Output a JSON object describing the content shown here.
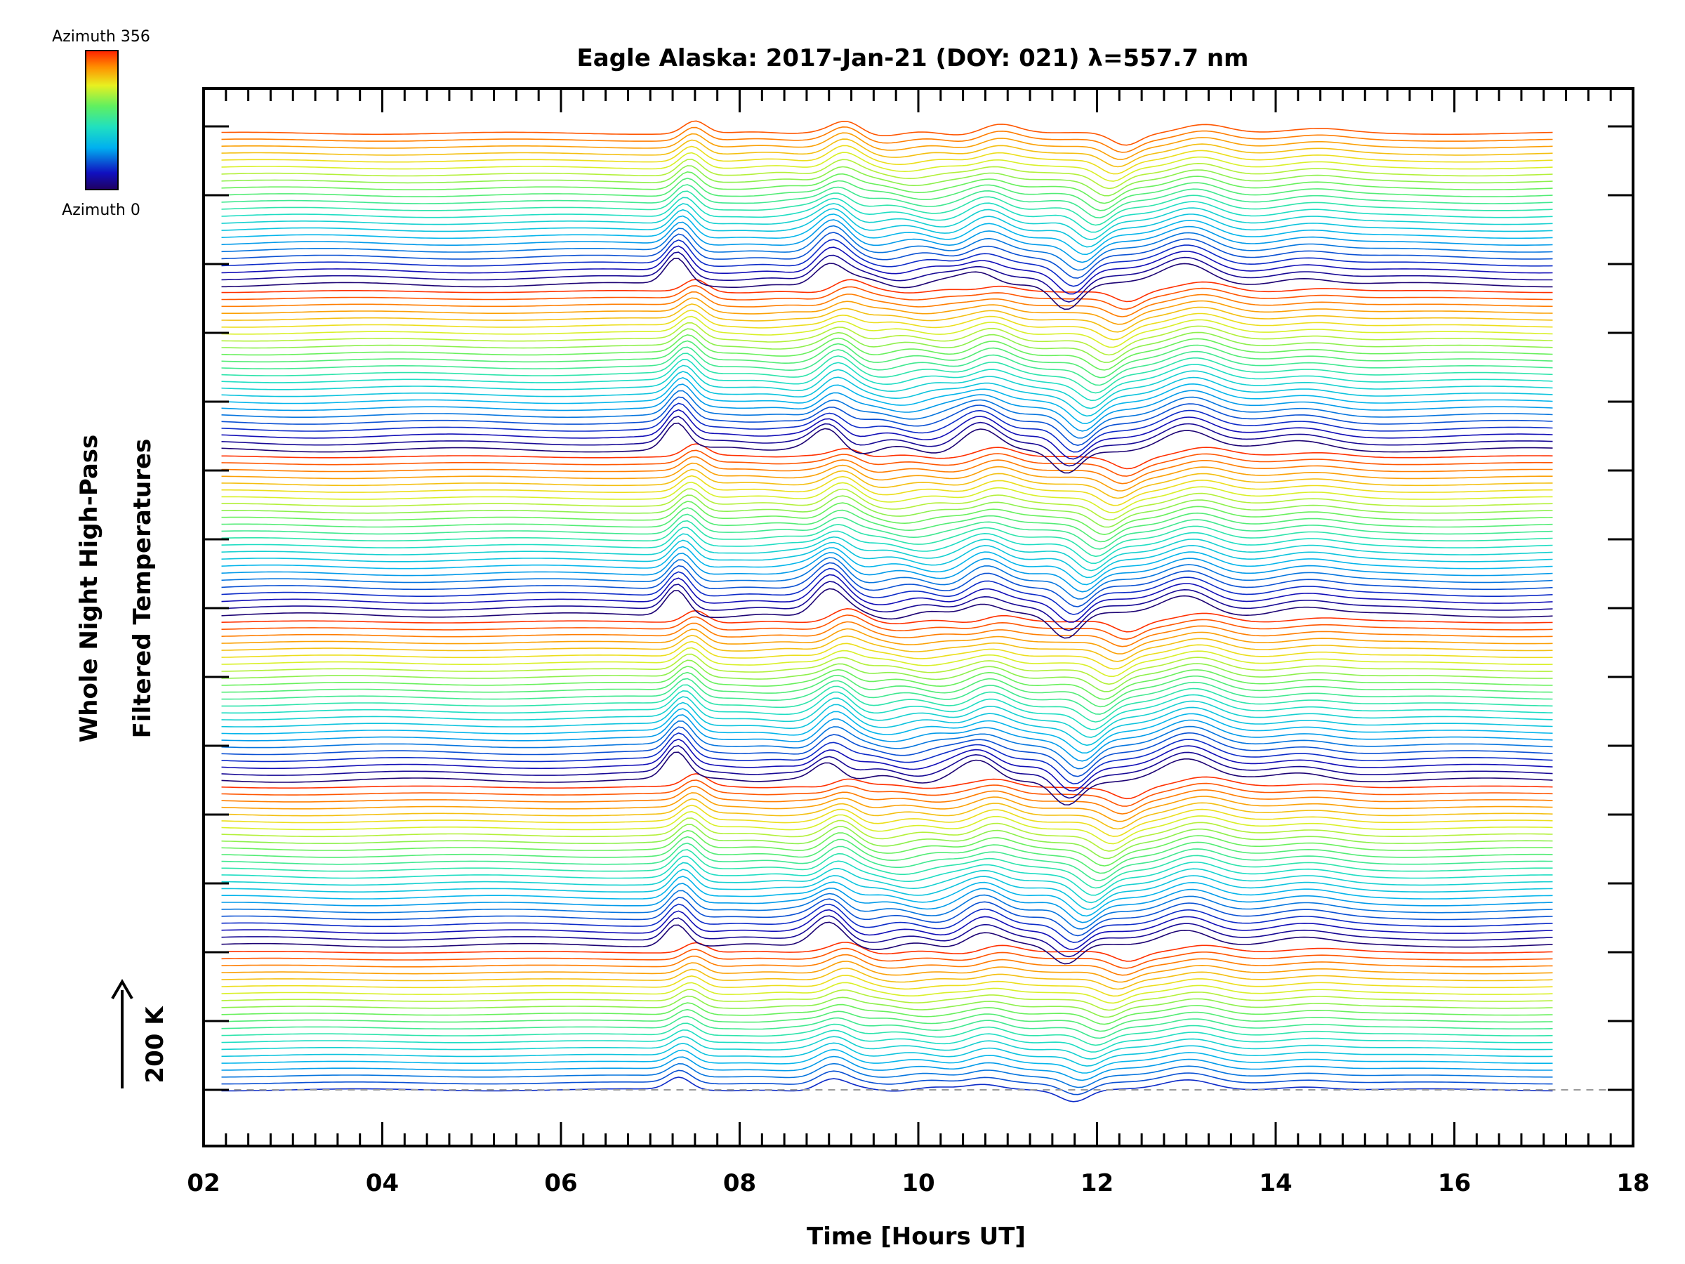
{
  "chart_data": {
    "type": "line",
    "title": "Eagle Alaska: 2017-Jan-21 (DOY: 021) λ=557.7 nm",
    "xlabel": "Time [Hours UT]",
    "ylabel_lines": [
      "Whole Night High-Pass",
      "Filtered Temperatures"
    ],
    "xlim": [
      2,
      18
    ],
    "x_ticks": [
      "02",
      "04",
      "06",
      "08",
      "10",
      "12",
      "14",
      "16",
      "18"
    ],
    "x_range_data": [
      2.2,
      17.1
    ],
    "colorbar": {
      "top_label": "Azimuth 356",
      "bottom_label": "Azimuth 0",
      "azimuth_range": [
        0,
        356
      ]
    },
    "scale_bar_label": "200 K",
    "baseline": "dashed",
    "series_count": 140,
    "series_groups": 6,
    "series_per_group": 24,
    "features": [
      {
        "t": 7.4,
        "amplitude": 1.0
      },
      {
        "t": 9.1,
        "amplitude": 0.85
      },
      {
        "t": 10.8,
        "amplitude": 0.6
      },
      {
        "t": 12.0,
        "amplitude": -0.9
      },
      {
        "t": 13.1,
        "amplitude": 0.75
      },
      {
        "t": 14.4,
        "amplitude": 0.3
      }
    ],
    "colors": {
      "axis": "#000000",
      "baseline": "#999999"
    }
  }
}
